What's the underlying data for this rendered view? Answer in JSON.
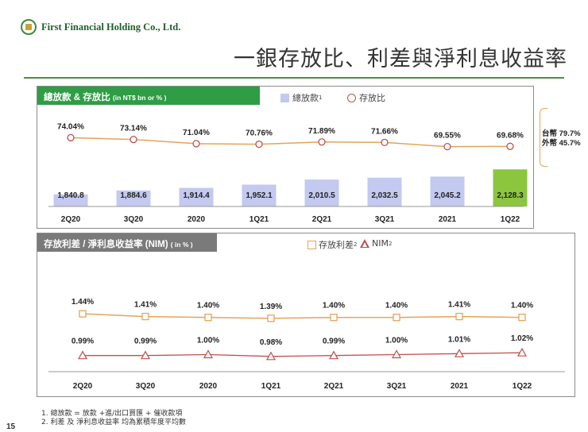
{
  "header": {
    "logo_text": "First Financial Holding Co., Ltd.",
    "page_title": "一銀存放比、利差與淨利息收益率"
  },
  "top_panel": {
    "title": "總放款 & 存放比",
    "unit": "(in NT$ bn or % )",
    "legend_loans": "總放款",
    "legend_loans_sup": "1",
    "legend_ratio": "存放比",
    "note_ntd": "台幣 79.7%",
    "note_fx": "外幣 45.7%"
  },
  "bottom_panel": {
    "title": "存放利差 / 淨利息收益率 (NIM)",
    "unit": "( in % )",
    "legend_spread": "存放利差",
    "legend_spread_sup": "2",
    "legend_nim": "NIM",
    "legend_nim_sup": "2"
  },
  "footnotes": {
    "note1": "1. 總放款 = 放款 +進/出口買匯 + 催收款項",
    "note2": "2. 利差 及 淨利息收益率 均為累積年度平均數"
  },
  "page_number": "15",
  "chart_data": [
    {
      "type": "bar",
      "categories": [
        "2Q20",
        "3Q20",
        "2020",
        "1Q21",
        "2Q21",
        "3Q21",
        "2021",
        "1Q22"
      ],
      "series": [
        {
          "name": "總放款",
          "values": [
            1840.8,
            1884.6,
            1914.4,
            1952.1,
            2010.5,
            2032.5,
            2045.2,
            2128.3
          ],
          "labels": [
            "1,840.8",
            "1,884.6",
            "1,914.4",
            "1,952.1",
            "2,010.5",
            "2,032.5",
            "2,045.2",
            "2,128.3"
          ]
        },
        {
          "name": "存放比",
          "type": "line",
          "values": [
            74.04,
            73.14,
            71.04,
            70.76,
            71.89,
            71.66,
            69.55,
            69.68
          ],
          "labels": [
            "74.04%",
            "73.14%",
            "71.04%",
            "70.76%",
            "71.89%",
            "71.66%",
            "69.55%",
            "69.68%"
          ]
        }
      ],
      "bar_color": "#c3c9ef",
      "highlight_bar_color": "#8cc63f",
      "line_color": "#e3a45b",
      "marker_color": "#c0504d"
    },
    {
      "type": "line",
      "categories": [
        "2Q20",
        "3Q20",
        "2020",
        "1Q21",
        "2Q21",
        "3Q21",
        "2021",
        "1Q22"
      ],
      "series": [
        {
          "name": "存放利差",
          "values": [
            1.44,
            1.41,
            1.4,
            1.39,
            1.4,
            1.4,
            1.41,
            1.4
          ],
          "labels": [
            "1.44%",
            "1.41%",
            "1.40%",
            "1.39%",
            "1.40%",
            "1.40%",
            "1.41%",
            "1.40%"
          ]
        },
        {
          "name": "NIM",
          "values": [
            0.99,
            0.99,
            1.0,
            0.98,
            0.99,
            1.0,
            1.01,
            1.02
          ],
          "labels": [
            "0.99%",
            "0.99%",
            "1.00%",
            "0.98%",
            "0.99%",
            "1.00%",
            "1.01%",
            "1.02%"
          ]
        }
      ],
      "spread_color": "#e3a45b",
      "nim_color": "#c0504d"
    }
  ]
}
